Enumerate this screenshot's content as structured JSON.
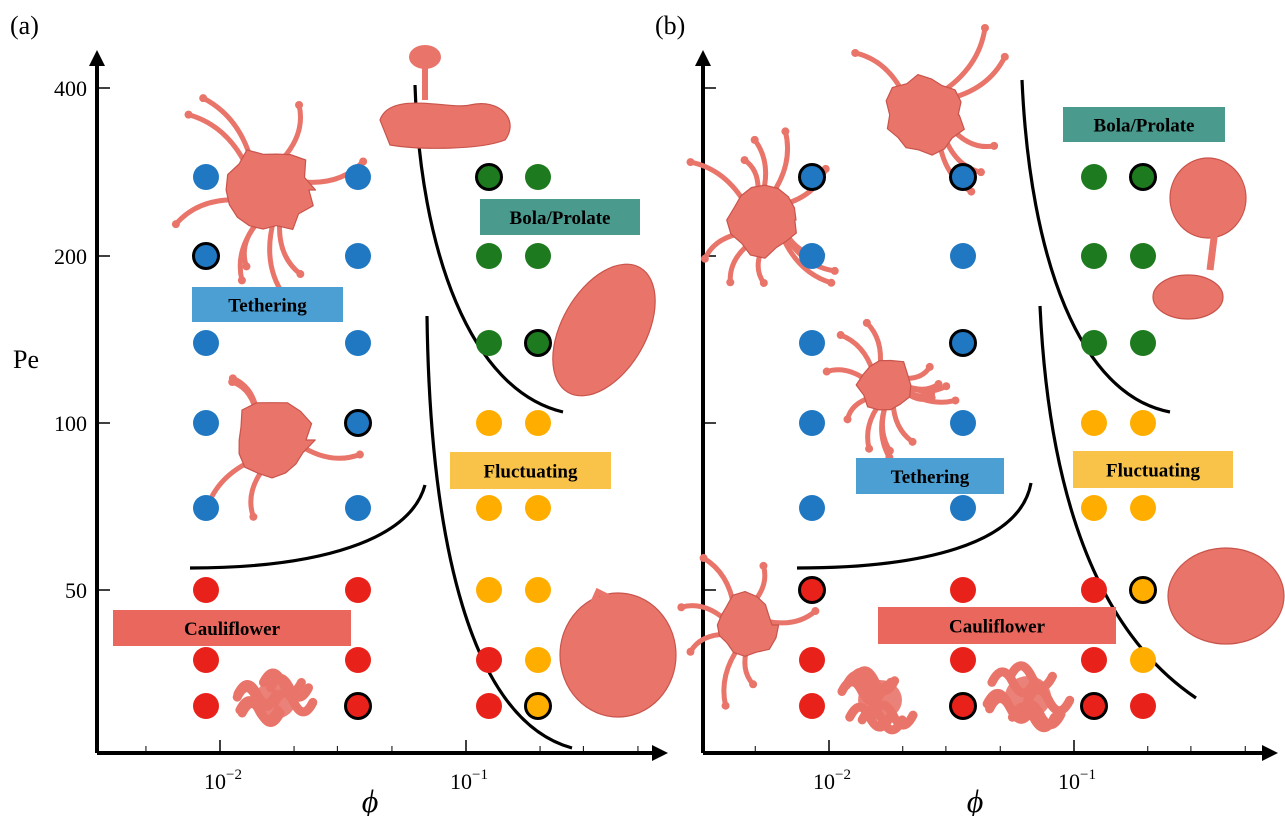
{
  "colors": {
    "tethering": "#1f78c1",
    "bola_prolate": "#1e7a1e",
    "fluctuating": "#ffae00",
    "cauliflower": "#e8221a",
    "label_tethering": "#4b9fd3",
    "label_bola": "#4a9a8e",
    "label_fluctuating": "#f9c34a",
    "label_cauliflower": "#e9675d",
    "membrane": "#e9746a",
    "membrane_dark": "#c9544b"
  },
  "chart_data": [
    {
      "panel": "(a)",
      "type": "scatter",
      "xscale": "log",
      "xlabel": "ϕ",
      "ylabel": "Pe",
      "xticks": [
        {
          "base": "10",
          "exp": "−2",
          "value": 0.01
        },
        {
          "base": "10",
          "exp": "−1",
          "value": 0.1
        }
      ],
      "yticks": [
        50,
        100,
        200,
        400
      ],
      "region_labels": {
        "tethering": "Tethering",
        "bola_prolate": "Bola/Prolate",
        "fluctuating": "Fluctuating",
        "cauliflower": "Cauliflower"
      },
      "points": [
        {
          "phi": 0.009,
          "Pe": 300,
          "state": "tethering",
          "highlight": false
        },
        {
          "phi": 0.035,
          "Pe": 300,
          "state": "tethering",
          "highlight": false
        },
        {
          "phi": 0.009,
          "Pe": 200,
          "state": "tethering",
          "highlight": true
        },
        {
          "phi": 0.035,
          "Pe": 200,
          "state": "tethering",
          "highlight": false
        },
        {
          "phi": 0.009,
          "Pe": 140,
          "state": "tethering",
          "highlight": false
        },
        {
          "phi": 0.035,
          "Pe": 140,
          "state": "tethering",
          "highlight": false
        },
        {
          "phi": 0.009,
          "Pe": 100,
          "state": "tethering",
          "highlight": false
        },
        {
          "phi": 0.035,
          "Pe": 100,
          "state": "tethering",
          "highlight": true
        },
        {
          "phi": 0.009,
          "Pe": 75,
          "state": "tethering",
          "highlight": false
        },
        {
          "phi": 0.035,
          "Pe": 75,
          "state": "tethering",
          "highlight": false
        },
        {
          "phi": 0.009,
          "Pe": 50,
          "state": "cauliflower",
          "highlight": false
        },
        {
          "phi": 0.035,
          "Pe": 50,
          "state": "cauliflower",
          "highlight": false
        },
        {
          "phi": 0.009,
          "Pe": 35,
          "state": "cauliflower",
          "highlight": false
        },
        {
          "phi": 0.035,
          "Pe": 35,
          "state": "cauliflower",
          "highlight": false
        },
        {
          "phi": 0.009,
          "Pe": 25,
          "state": "cauliflower",
          "highlight": false
        },
        {
          "phi": 0.035,
          "Pe": 25,
          "state": "cauliflower",
          "highlight": true
        },
        {
          "phi": 0.12,
          "Pe": 300,
          "state": "bola_prolate",
          "highlight": true
        },
        {
          "phi": 0.2,
          "Pe": 300,
          "state": "bola_prolate",
          "highlight": false
        },
        {
          "phi": 0.12,
          "Pe": 200,
          "state": "bola_prolate",
          "highlight": false
        },
        {
          "phi": 0.2,
          "Pe": 200,
          "state": "bola_prolate",
          "highlight": false
        },
        {
          "phi": 0.12,
          "Pe": 140,
          "state": "bola_prolate",
          "highlight": false
        },
        {
          "phi": 0.2,
          "Pe": 140,
          "state": "bola_prolate",
          "highlight": true
        },
        {
          "phi": 0.12,
          "Pe": 100,
          "state": "fluctuating",
          "highlight": false
        },
        {
          "phi": 0.2,
          "Pe": 100,
          "state": "fluctuating",
          "highlight": false
        },
        {
          "phi": 0.12,
          "Pe": 75,
          "state": "fluctuating",
          "highlight": false
        },
        {
          "phi": 0.2,
          "Pe": 75,
          "state": "fluctuating",
          "highlight": false
        },
        {
          "phi": 0.12,
          "Pe": 50,
          "state": "fluctuating",
          "highlight": false
        },
        {
          "phi": 0.2,
          "Pe": 50,
          "state": "fluctuating",
          "highlight": false
        },
        {
          "phi": 0.12,
          "Pe": 35,
          "state": "cauliflower",
          "highlight": false
        },
        {
          "phi": 0.2,
          "Pe": 35,
          "state": "fluctuating",
          "highlight": false
        },
        {
          "phi": 0.12,
          "Pe": 25,
          "state": "cauliflower",
          "highlight": false
        },
        {
          "phi": 0.2,
          "Pe": 25,
          "state": "fluctuating",
          "highlight": true
        }
      ]
    },
    {
      "panel": "(b)",
      "type": "scatter",
      "xscale": "log",
      "xlabel": "ϕ",
      "ylabel": "",
      "xticks": [
        {
          "base": "10",
          "exp": "−2",
          "value": 0.01
        },
        {
          "base": "10",
          "exp": "−1",
          "value": 0.1
        }
      ],
      "yticks": [
        50,
        100,
        200,
        400
      ],
      "region_labels": {
        "tethering": "Tethering",
        "bola_prolate": "Bola/Prolate",
        "fluctuating": "Fluctuating",
        "cauliflower": "Cauliflower"
      },
      "points": [
        {
          "phi": 0.009,
          "Pe": 300,
          "state": "tethering",
          "highlight": true
        },
        {
          "phi": 0.035,
          "Pe": 300,
          "state": "tethering",
          "highlight": true
        },
        {
          "phi": 0.009,
          "Pe": 200,
          "state": "tethering",
          "highlight": false
        },
        {
          "phi": 0.035,
          "Pe": 200,
          "state": "tethering",
          "highlight": false
        },
        {
          "phi": 0.009,
          "Pe": 140,
          "state": "tethering",
          "highlight": false
        },
        {
          "phi": 0.035,
          "Pe": 140,
          "state": "tethering",
          "highlight": true
        },
        {
          "phi": 0.009,
          "Pe": 100,
          "state": "tethering",
          "highlight": false
        },
        {
          "phi": 0.035,
          "Pe": 100,
          "state": "tethering",
          "highlight": false
        },
        {
          "phi": 0.009,
          "Pe": 75,
          "state": "tethering",
          "highlight": false
        },
        {
          "phi": 0.035,
          "Pe": 75,
          "state": "tethering",
          "highlight": false
        },
        {
          "phi": 0.009,
          "Pe": 50,
          "state": "cauliflower",
          "highlight": true
        },
        {
          "phi": 0.035,
          "Pe": 50,
          "state": "cauliflower",
          "highlight": false
        },
        {
          "phi": 0.009,
          "Pe": 35,
          "state": "cauliflower",
          "highlight": false
        },
        {
          "phi": 0.035,
          "Pe": 35,
          "state": "cauliflower",
          "highlight": false
        },
        {
          "phi": 0.009,
          "Pe": 25,
          "state": "cauliflower",
          "highlight": false
        },
        {
          "phi": 0.035,
          "Pe": 25,
          "state": "cauliflower",
          "highlight": true
        },
        {
          "phi": 0.12,
          "Pe": 300,
          "state": "bola_prolate",
          "highlight": false
        },
        {
          "phi": 0.2,
          "Pe": 300,
          "state": "bola_prolate",
          "highlight": true
        },
        {
          "phi": 0.12,
          "Pe": 200,
          "state": "bola_prolate",
          "highlight": false
        },
        {
          "phi": 0.2,
          "Pe": 200,
          "state": "bola_prolate",
          "highlight": false
        },
        {
          "phi": 0.12,
          "Pe": 140,
          "state": "bola_prolate",
          "highlight": false
        },
        {
          "phi": 0.2,
          "Pe": 140,
          "state": "bola_prolate",
          "highlight": false
        },
        {
          "phi": 0.12,
          "Pe": 100,
          "state": "fluctuating",
          "highlight": false
        },
        {
          "phi": 0.2,
          "Pe": 100,
          "state": "fluctuating",
          "highlight": false
        },
        {
          "phi": 0.12,
          "Pe": 75,
          "state": "fluctuating",
          "highlight": false
        },
        {
          "phi": 0.2,
          "Pe": 75,
          "state": "fluctuating",
          "highlight": false
        },
        {
          "phi": 0.12,
          "Pe": 50,
          "state": "cauliflower",
          "highlight": false
        },
        {
          "phi": 0.2,
          "Pe": 50,
          "state": "fluctuating",
          "highlight": true
        },
        {
          "phi": 0.12,
          "Pe": 35,
          "state": "cauliflower",
          "highlight": false
        },
        {
          "phi": 0.2,
          "Pe": 35,
          "state": "fluctuating",
          "highlight": false
        },
        {
          "phi": 0.12,
          "Pe": 25,
          "state": "cauliflower",
          "highlight": true
        },
        {
          "phi": 0.2,
          "Pe": 25,
          "state": "cauliflower",
          "highlight": false
        }
      ]
    }
  ]
}
